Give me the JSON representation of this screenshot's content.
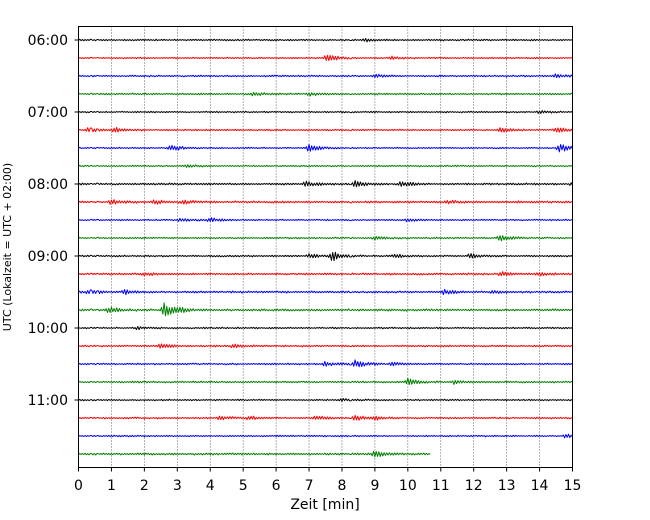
{
  "chart_data": {
    "type": "line",
    "title": "",
    "xlabel": "Zeit  [min]",
    "ylabel": "UTC (Lokalzeit = UTC + 02:00)",
    "xlim": [
      0,
      15
    ],
    "xticks": [
      "0",
      "1",
      "2",
      "3",
      "4",
      "5",
      "6",
      "7",
      "8",
      "9",
      "10",
      "11",
      "12",
      "13",
      "14",
      "15"
    ],
    "ylim_hours": [
      "06:00",
      "11:45"
    ],
    "yticks": [
      "06:00",
      "07:00",
      "08:00",
      "09:00",
      "10:00",
      "11:00"
    ],
    "grid": "vertical dotted",
    "trace_interval_min": 15,
    "trace_colors": [
      "#000000",
      "#ff0000",
      "#0000ff",
      "#008000"
    ],
    "series": [
      {
        "start": "06:00",
        "color": "#000000",
        "noise": 0.3,
        "events": [
          [
            8.7,
            0.5
          ]
        ]
      },
      {
        "start": "06:15",
        "color": "#ff0000",
        "noise": 0.28,
        "events": [
          [
            7.55,
            1.6
          ],
          [
            9.5,
            0.6
          ]
        ]
      },
      {
        "start": "06:30",
        "color": "#0000ff",
        "noise": 0.32,
        "events": [
          [
            14.5,
            0.7
          ],
          [
            9.0,
            0.5
          ]
        ]
      },
      {
        "start": "06:45",
        "color": "#008000",
        "noise": 0.32,
        "events": [
          [
            5.3,
            0.6
          ],
          [
            7.0,
            0.5
          ]
        ]
      },
      {
        "start": "07:00",
        "color": "#000000",
        "noise": 0.28,
        "events": [
          [
            14.0,
            0.5
          ]
        ]
      },
      {
        "start": "07:15",
        "color": "#ff0000",
        "noise": 0.3,
        "events": [
          [
            0.3,
            0.9
          ],
          [
            1.1,
            1.0
          ],
          [
            12.8,
            1.0
          ],
          [
            14.5,
            1.0
          ]
        ]
      },
      {
        "start": "07:30",
        "color": "#0000ff",
        "noise": 0.28,
        "events": [
          [
            2.8,
            1.2
          ],
          [
            7.0,
            1.4
          ],
          [
            14.6,
            1.6
          ]
        ]
      },
      {
        "start": "07:45",
        "color": "#008000",
        "noise": 0.28,
        "events": [
          [
            3.3,
            0.5
          ]
        ]
      },
      {
        "start": "08:00",
        "color": "#000000",
        "noise": 0.38,
        "events": [
          [
            6.9,
            0.9
          ],
          [
            8.4,
            1.1
          ],
          [
            9.8,
            1.2
          ],
          [
            15.0,
            0.9
          ]
        ]
      },
      {
        "start": "08:15",
        "color": "#ff0000",
        "noise": 0.4,
        "events": [
          [
            1.0,
            0.9
          ],
          [
            2.3,
            0.8
          ],
          [
            3.2,
            0.6
          ],
          [
            11.2,
            0.5
          ]
        ]
      },
      {
        "start": "08:30",
        "color": "#0000ff",
        "noise": 0.28,
        "events": [
          [
            3.1,
            0.6
          ],
          [
            4.0,
            0.8
          ],
          [
            10.0,
            0.5
          ]
        ]
      },
      {
        "start": "08:45",
        "color": "#008000",
        "noise": 0.3,
        "events": [
          [
            9.0,
            0.6
          ],
          [
            12.8,
            1.1
          ]
        ]
      },
      {
        "start": "09:00",
        "color": "#000000",
        "noise": 0.32,
        "events": [
          [
            7.0,
            0.8
          ],
          [
            7.7,
            1.8
          ],
          [
            9.6,
            0.6
          ],
          [
            11.9,
            0.9
          ]
        ]
      },
      {
        "start": "09:15",
        "color": "#ff0000",
        "noise": 0.38,
        "events": [
          [
            2.0,
            0.6
          ],
          [
            12.8,
            0.9
          ],
          [
            14.0,
            0.5
          ]
        ]
      },
      {
        "start": "09:30",
        "color": "#0000ff",
        "noise": 0.38,
        "events": [
          [
            0.3,
            0.7
          ],
          [
            1.4,
            0.8
          ],
          [
            11.1,
            0.9
          ],
          [
            12.6,
            0.5
          ]
        ]
      },
      {
        "start": "09:45",
        "color": "#008000",
        "noise": 0.4,
        "events": [
          [
            0.9,
            1.2
          ],
          [
            2.6,
            2.8
          ],
          [
            3.1,
            0.6
          ]
        ]
      },
      {
        "start": "10:00",
        "color": "#000000",
        "noise": 0.3,
        "events": [
          [
            1.8,
            0.5
          ]
        ]
      },
      {
        "start": "10:15",
        "color": "#ff0000",
        "noise": 0.32,
        "events": [
          [
            2.5,
            1.0
          ],
          [
            4.7,
            0.8
          ]
        ]
      },
      {
        "start": "10:30",
        "color": "#0000ff",
        "noise": 0.32,
        "events": [
          [
            7.5,
            0.8
          ],
          [
            8.4,
            1.4
          ],
          [
            9.5,
            0.6
          ]
        ]
      },
      {
        "start": "10:45",
        "color": "#008000",
        "noise": 0.34,
        "events": [
          [
            10.0,
            1.2
          ],
          [
            11.4,
            0.7
          ]
        ]
      },
      {
        "start": "11:00",
        "color": "#000000",
        "noise": 0.28,
        "events": [
          [
            8.0,
            0.4
          ]
        ]
      },
      {
        "start": "11:15",
        "color": "#ff0000",
        "noise": 0.32,
        "events": [
          [
            4.3,
            0.7
          ],
          [
            5.2,
            0.8
          ],
          [
            7.2,
            0.7
          ],
          [
            8.4,
            1.0
          ],
          [
            9.0,
            0.6
          ]
        ]
      },
      {
        "start": "11:30",
        "color": "#0000ff",
        "noise": 0.3,
        "events": [
          [
            14.8,
            0.7
          ]
        ]
      },
      {
        "start": "11:45",
        "color": "#008000",
        "noise": 0.38,
        "events": [
          [
            9.0,
            1.3
          ]
        ],
        "end_min": 10.7
      }
    ]
  }
}
